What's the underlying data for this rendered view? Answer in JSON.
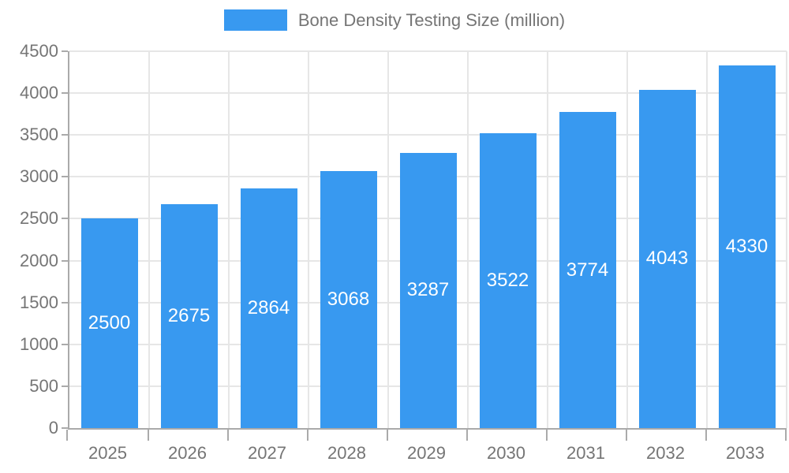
{
  "legend": {
    "label": "Bone Density Testing Size (million)"
  },
  "colors": {
    "bar": "#3899F0",
    "axis_line": "#AAAAAA",
    "gridline": "#E6E6E6",
    "axis_text": "#757575",
    "bar_value_text": "#FFFFFF",
    "background": "#FFFFFF"
  },
  "chart_data": {
    "type": "bar",
    "title": "Bone Density Testing Size (million)",
    "categories": [
      "2025",
      "2026",
      "2027",
      "2028",
      "2029",
      "2030",
      "2031",
      "2032",
      "2033"
    ],
    "values": [
      2500,
      2675,
      2864,
      3068,
      3287,
      3522,
      3774,
      4043,
      4330
    ],
    "xlabel": "",
    "ylabel": "",
    "ylim": [
      0,
      4500
    ],
    "ytick_step": 500,
    "ytick_labels": [
      "0",
      "500",
      "1000",
      "1500",
      "2000",
      "2500",
      "3000",
      "3500",
      "4000",
      "4500"
    ],
    "grid": true,
    "grid_vertical": true,
    "legend_position": "top-center",
    "value_labels": "inside-center"
  }
}
